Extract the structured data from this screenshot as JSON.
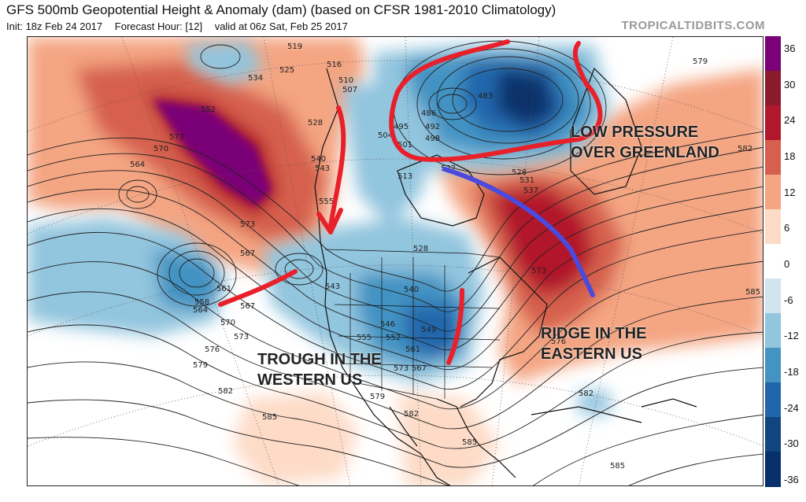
{
  "header": {
    "title": "GFS 500mb Geopotential Height & Anomaly (dam) (based on CFSR 1981-2010 Climatology)",
    "init": "Init: 18z Feb 24 2017",
    "forecast_hour": "Forecast Hour: [12]",
    "valid": "valid at 06z Sat, Feb 25 2017",
    "brand": "TROPICALTIDBITS.COM"
  },
  "annotations": {
    "greenland": [
      "LOW PRESSURE",
      "OVER GREENLAND"
    ],
    "west": [
      "TROUGH IN THE",
      "WESTERN US"
    ],
    "east": [
      "RIDGE IN THE",
      "EASTERN US"
    ]
  },
  "colorbar": {
    "ticks": [
      "36",
      "30",
      "24",
      "18",
      "12",
      "6",
      "0",
      "-6",
      "-12",
      "-18",
      "-24",
      "-30",
      "-36"
    ],
    "colors": [
      "#7a0177",
      "#8b1a2b",
      "#b2182b",
      "#d6604d",
      "#f4a582",
      "#fddbc7",
      "#ffffff",
      "#d1e5f0",
      "#92c5de",
      "#4393c3",
      "#2166ac",
      "#104580",
      "#08306b"
    ]
  },
  "contour_labels": [
    "519",
    "516",
    "510",
    "507",
    "534",
    "525",
    "528",
    "540",
    "543",
    "546",
    "549",
    "552",
    "555",
    "564",
    "570",
    "573",
    "567",
    "561",
    "558",
    "576",
    "579",
    "582",
    "585",
    "483",
    "486",
    "492",
    "495",
    "498",
    "501",
    "504",
    "513",
    "522",
    "531",
    "537"
  ],
  "colors": {
    "red_marker": "#e8202a",
    "blue_marker": "#4a4adf"
  }
}
